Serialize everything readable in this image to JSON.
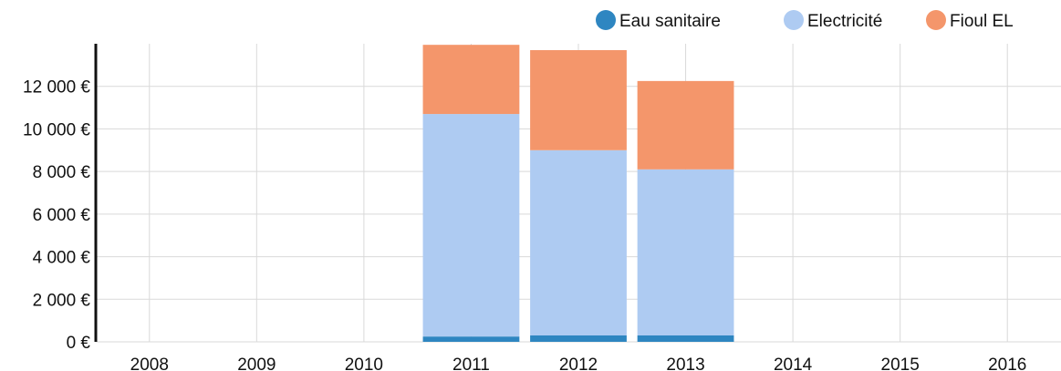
{
  "chart_data": {
    "type": "bar",
    "stacked": true,
    "categories": [
      "2008",
      "2009",
      "2010",
      "2011",
      "2012",
      "2013",
      "2014",
      "2015",
      "2016"
    ],
    "series": [
      {
        "name": "Eau sanitaire",
        "color": "#2e86c1",
        "values": [
          0,
          0,
          0,
          250,
          300,
          300,
          0,
          0,
          0
        ]
      },
      {
        "name": "Electricité",
        "color": "#aecbf2",
        "values": [
          0,
          0,
          0,
          10450,
          8700,
          7800,
          0,
          0,
          0
        ]
      },
      {
        "name": "Fioul EL",
        "color": "#f4966b",
        "values": [
          0,
          0,
          0,
          3250,
          4700,
          4150,
          0,
          0,
          0
        ]
      }
    ],
    "y_ticks": [
      0,
      2000,
      4000,
      6000,
      8000,
      10000,
      12000
    ],
    "y_tick_labels": [
      "0 €",
      "2 000 €",
      "4 000 €",
      "6 000 €",
      "8 000 €",
      "10 000 €",
      "12 000 €"
    ],
    "ylim": [
      0,
      14000
    ],
    "grid": true,
    "legend_position": "top-right"
  }
}
